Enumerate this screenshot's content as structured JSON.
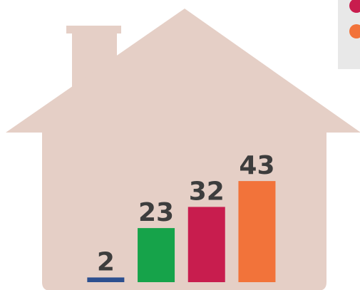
{
  "chart_data": {
    "type": "bar",
    "categories": [
      null,
      null,
      null,
      null
    ],
    "values": [
      2,
      23,
      32,
      43
    ],
    "colors": [
      "#2c4f8f",
      "#16a34a",
      "#c81d4e",
      "#f2733a"
    ]
  }
}
